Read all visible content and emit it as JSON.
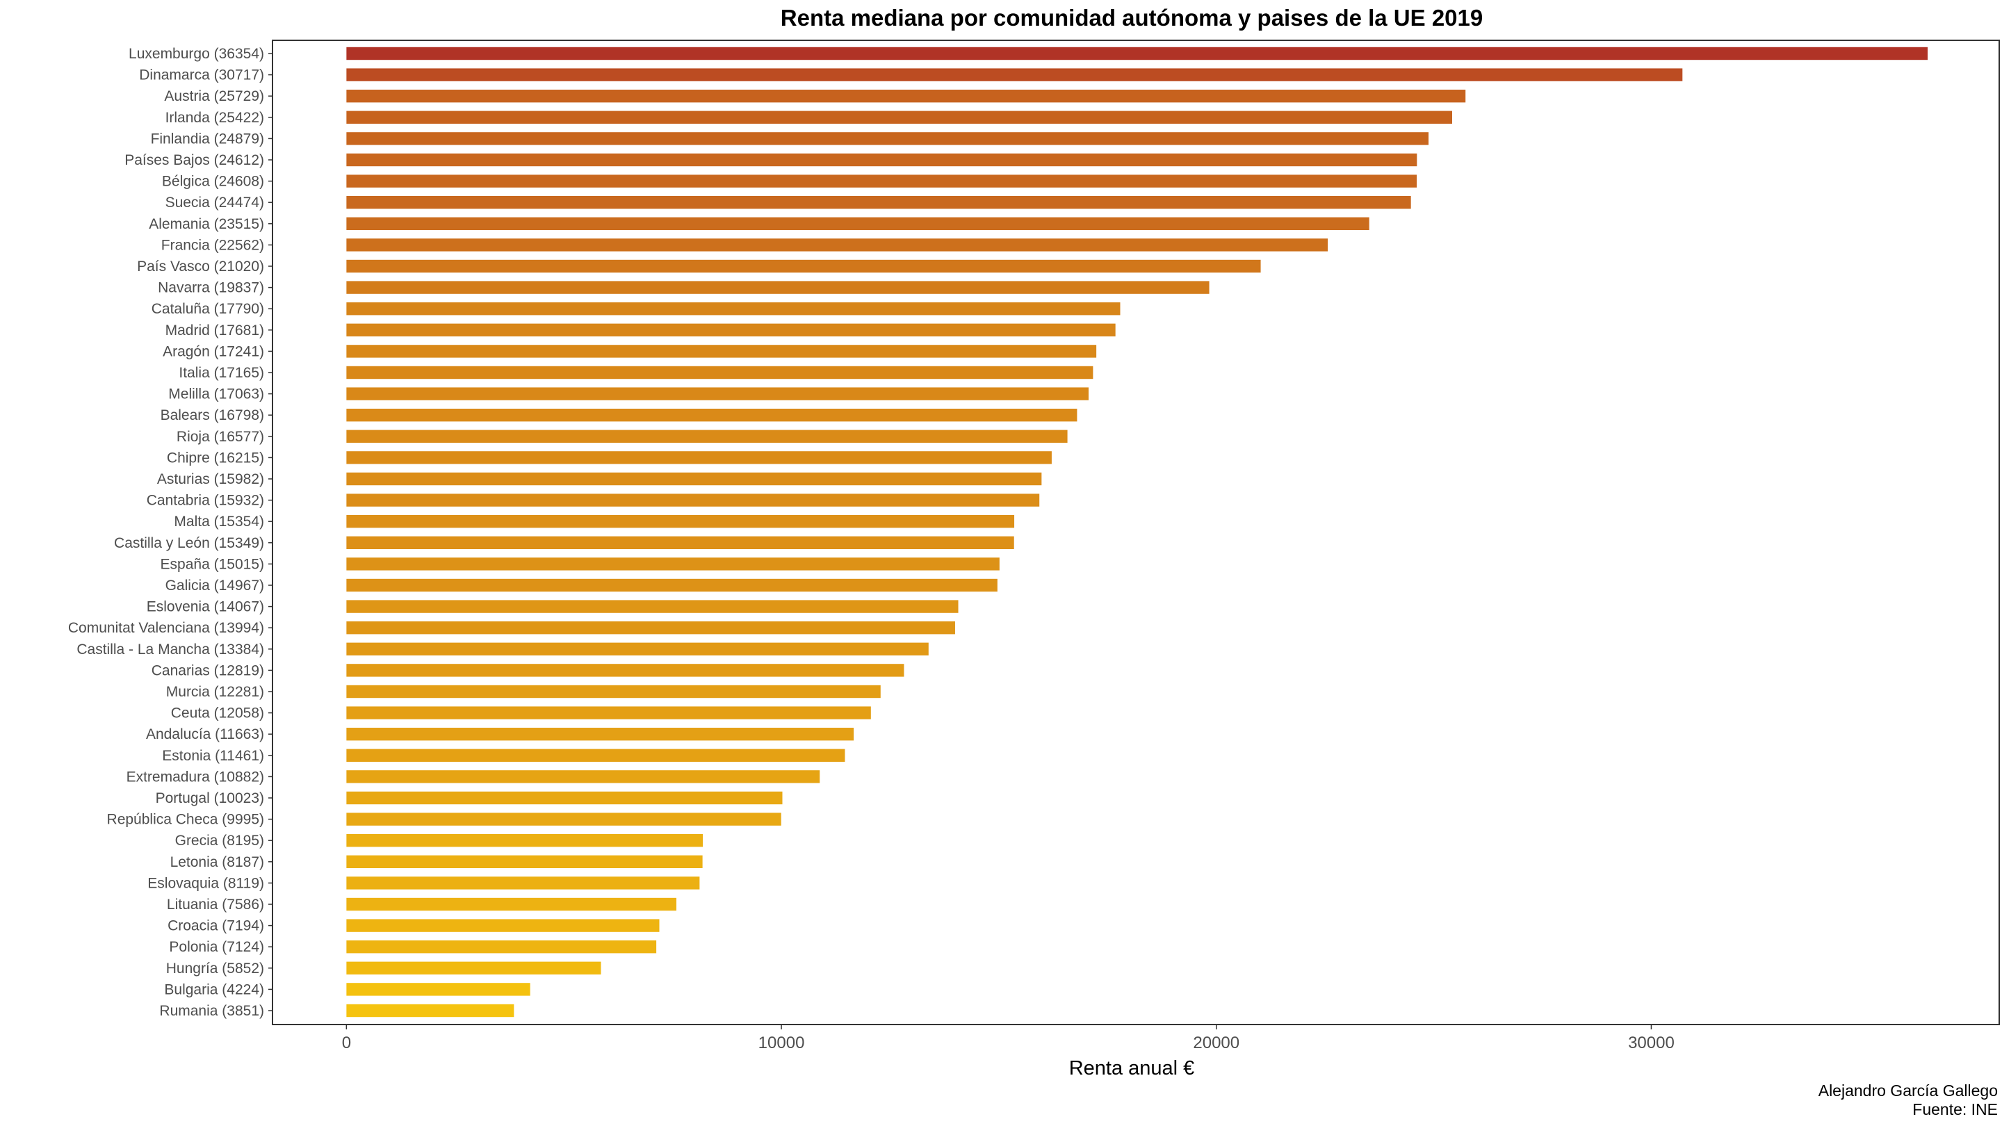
{
  "chart_data": {
    "type": "bar",
    "orientation": "horizontal",
    "title": "Renta mediana por comunidad autónoma y paises de la UE 2019",
    "xlabel": "Renta anual €",
    "ylabel": "",
    "caption": [
      "Alejandro García Gallego",
      "Fuente: INE"
    ],
    "xlim": [
      -1700,
      38000
    ],
    "xticks": [
      0,
      10000,
      20000,
      30000
    ],
    "grid": false,
    "color_low": "#F5C30F",
    "color_high": "#B03326",
    "categories": [
      "Luxemburgo (36354)",
      "Dinamarca (30717)",
      "Austria (25729)",
      "Irlanda (25422)",
      "Finlandia (24879)",
      "Países Bajos (24612)",
      "Bélgica (24608)",
      "Suecia (24474)",
      "Alemania (23515)",
      "Francia (22562)",
      "País Vasco (21020)",
      "Navarra (19837)",
      "Cataluña (17790)",
      "Madrid (17681)",
      "Aragón (17241)",
      "Italia (17165)",
      "Melilla (17063)",
      "Balears (16798)",
      "Rioja (16577)",
      "Chipre (16215)",
      "Asturias (15982)",
      "Cantabria (15932)",
      "Malta (15354)",
      "Castilla y León (15349)",
      "España (15015)",
      "Galicia (14967)",
      "Eslovenia (14067)",
      "Comunitat Valenciana (13994)",
      "Castilla - La Mancha (13384)",
      "Canarias (12819)",
      "Murcia (12281)",
      "Ceuta (12058)",
      "Andalucía (11663)",
      "Estonia (11461)",
      "Extremadura (10882)",
      "Portugal (10023)",
      "República Checa (9995)",
      "Grecia (8195)",
      "Letonia (8187)",
      "Eslovaquia (8119)",
      "Lituania (7586)",
      "Croacia (7194)",
      "Polonia (7124)",
      "Hungría (5852)",
      "Bulgaria (4224)",
      "Rumania (3851)"
    ],
    "values": [
      36354,
      30717,
      25729,
      25422,
      24879,
      24612,
      24608,
      24474,
      23515,
      22562,
      21020,
      19837,
      17790,
      17681,
      17241,
      17165,
      17063,
      16798,
      16577,
      16215,
      15982,
      15932,
      15354,
      15349,
      15015,
      14967,
      14067,
      13994,
      13384,
      12819,
      12281,
      12058,
      11663,
      11461,
      10882,
      10023,
      9995,
      8195,
      8187,
      8119,
      7586,
      7194,
      7124,
      5852,
      4224,
      3851
    ]
  }
}
